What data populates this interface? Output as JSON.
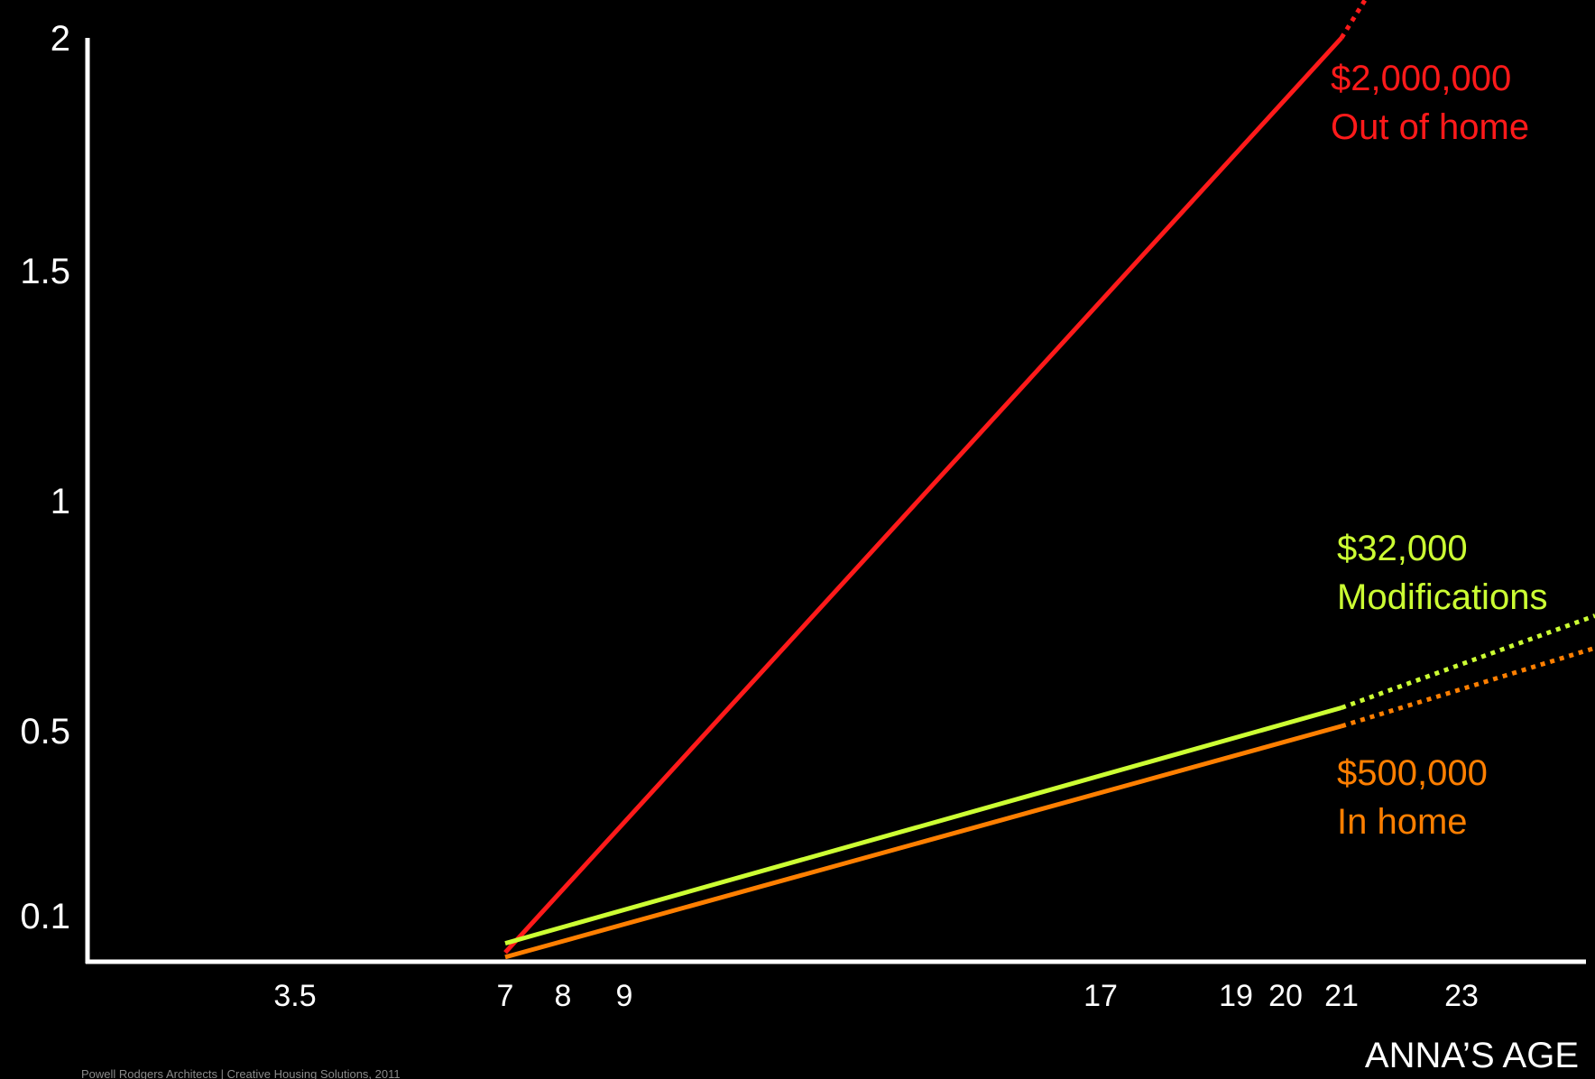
{
  "chart_data": {
    "type": "line",
    "title": "",
    "xlabel": "ANNA’S AGE",
    "ylabel": "",
    "xticks": [
      {
        "label": "3.5"
      },
      {
        "label": "7"
      },
      {
        "label": "8"
      },
      {
        "label": "9"
      },
      {
        "label": "17"
      },
      {
        "label": "19"
      },
      {
        "label": "20"
      },
      {
        "label": "21"
      },
      {
        "label": "23"
      }
    ],
    "yticks": [
      {
        "label": "0.1",
        "value": 0.1
      },
      {
        "label": "0.5",
        "value": 0.5
      },
      {
        "label": "1",
        "value": 1
      },
      {
        "label": "1.5",
        "value": 1.5
      },
      {
        "label": "2",
        "value": 2
      }
    ],
    "ylim": [
      0,
      2
    ],
    "grid": false,
    "series": [
      {
        "name": "Out of home",
        "amount": "$2,000,000",
        "color": "#ff1a1a",
        "points": [
          {
            "x": "7",
            "y": 0.02
          },
          {
            "x": "21",
            "y": 2.0
          }
        ],
        "extension": {
          "x": "21.5",
          "y": 2.12
        }
      },
      {
        "name": "Modifications",
        "amount": "$32,000",
        "color": "#ccff33",
        "points": [
          {
            "x": "7",
            "y": 0.04
          },
          {
            "x": "21",
            "y": 0.55
          }
        ],
        "extension": {
          "x": "25",
          "y": 0.75
        }
      },
      {
        "name": "In home",
        "amount": "$500,000",
        "color": "#ff7f00",
        "points": [
          {
            "x": "7",
            "y": 0.01
          },
          {
            "x": "21",
            "y": 0.51
          }
        ],
        "extension": {
          "x": "25",
          "y": 0.68
        }
      }
    ],
    "credit": "Powell Rodgers Architects | Creative Housing Solutions, 2011"
  }
}
